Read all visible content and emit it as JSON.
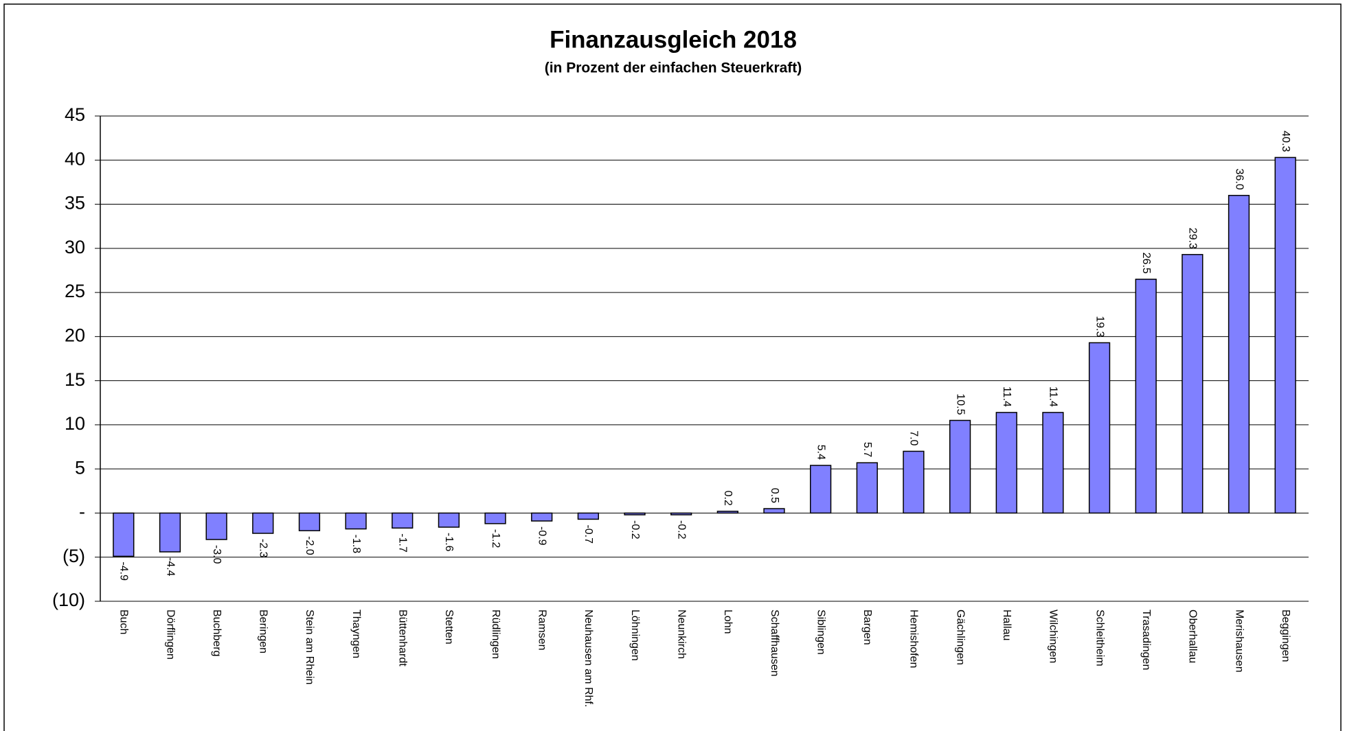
{
  "chart_data": {
    "type": "bar",
    "title": "Finanzausgleich 2018",
    "subtitle": "(in Prozent der einfachen Steuerkraft)",
    "categories": [
      "Buch",
      "Dörflingen",
      "Buchberg",
      "Beringen",
      "Stein am Rhein",
      "Thayngen",
      "Büttenhardt",
      "Stetten",
      "Rüdlingen",
      "Ramsen",
      "Neuhausen am Rhf.",
      "Löhningen",
      "Neunkirch",
      "Lohn",
      "Schaffhausen",
      "Siblingen",
      "Bargen",
      "Hemishofen",
      "Gächlingen",
      "Hallau",
      "Wilchingen",
      "Schleitheim",
      "Trasadingen",
      "Oberhallau",
      "Merishausen",
      "Beggingen"
    ],
    "values": [
      -4.9,
      -4.4,
      -3.0,
      -2.3,
      -2.0,
      -1.8,
      -1.7,
      -1.6,
      -1.2,
      -0.9,
      -0.7,
      -0.2,
      -0.2,
      0.2,
      0.5,
      5.4,
      5.7,
      7.0,
      10.5,
      11.4,
      11.4,
      19.3,
      26.5,
      29.3,
      36.0,
      40.3
    ],
    "value_labels": [
      "-4.9",
      "-4.4",
      "-3.0",
      "-2.3",
      "-2.0",
      "-1.8",
      "-1.7",
      "-1.6",
      "-1.2",
      "-0.9",
      "-0.7",
      "-0.2",
      "-0.2",
      "0.2",
      "0.5",
      "5.4",
      "5.7",
      "7.0",
      "10.5",
      "11.4",
      "11.4",
      "19.3",
      "26.5",
      "29.3",
      "36.0",
      "40.3"
    ],
    "color": "#8080ff",
    "ylim": [
      -10,
      45
    ],
    "yticks": [
      {
        "value": -10,
        "label": "(10)"
      },
      {
        "value": -5,
        "label": "(5)"
      },
      {
        "value": 0,
        "label": "-"
      },
      5,
      10,
      15,
      20,
      25,
      30,
      35,
      40,
      45
    ],
    "grid": true
  }
}
